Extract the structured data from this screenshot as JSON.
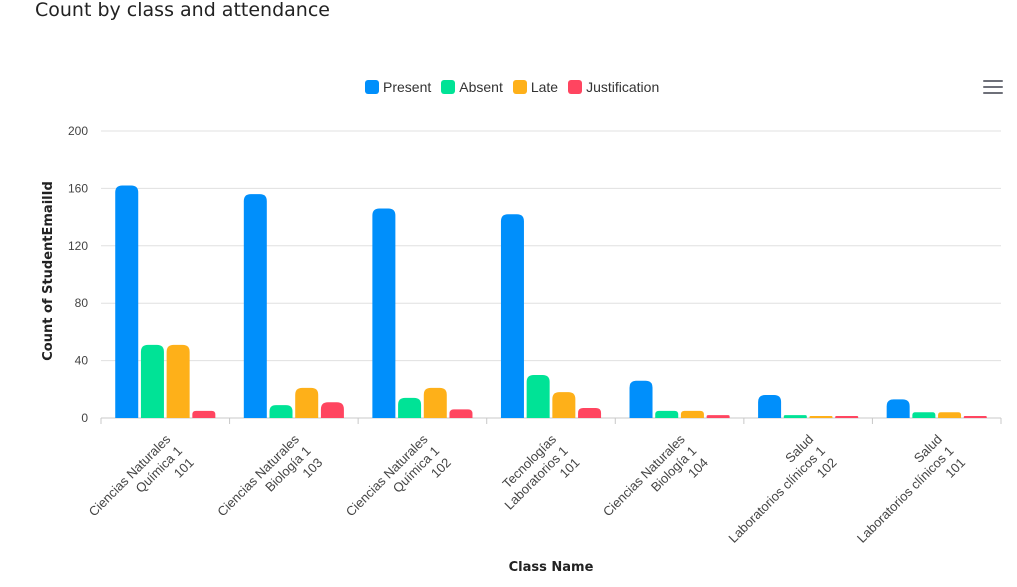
{
  "title": "Count by class and attendance",
  "menu_icon": "hamburger-menu-icon",
  "chart_data": {
    "type": "bar",
    "title": "Count by class and attendance",
    "xlabel": "Class Name",
    "ylabel": "Count of StudentEmailId",
    "ylim": [
      0,
      200
    ],
    "yticks": [
      0,
      40,
      80,
      120,
      160,
      200
    ],
    "grid": true,
    "legend_position": "top-center",
    "categories": [
      [
        "Ciencias Naturales",
        "Química 1",
        "101"
      ],
      [
        "Ciencias Naturales",
        "Biología 1",
        "103"
      ],
      [
        "Ciencias Naturales",
        "Química 1",
        "102"
      ],
      [
        "Tecnologías",
        "Laboratorios 1",
        "101"
      ],
      [
        "Ciencias Naturales",
        "Biología 1",
        "104"
      ],
      [
        "Salud",
        "Laboratorios clínicos 1",
        "102"
      ],
      [
        "Salud",
        "Laboratorios clínicos 1",
        "101"
      ]
    ],
    "series": [
      {
        "name": "Present",
        "color": "#008ffb",
        "values": [
          162,
          156,
          146,
          142,
          26,
          16,
          13
        ]
      },
      {
        "name": "Absent",
        "color": "#00e396",
        "values": [
          51,
          9,
          14,
          30,
          5,
          2,
          4
        ]
      },
      {
        "name": "Late",
        "color": "#feb019",
        "values": [
          51,
          21,
          21,
          18,
          5,
          1,
          4
        ]
      },
      {
        "name": "Justification",
        "color": "#ff4560",
        "values": [
          5,
          11,
          6,
          7,
          2,
          1,
          0
        ]
      }
    ]
  }
}
